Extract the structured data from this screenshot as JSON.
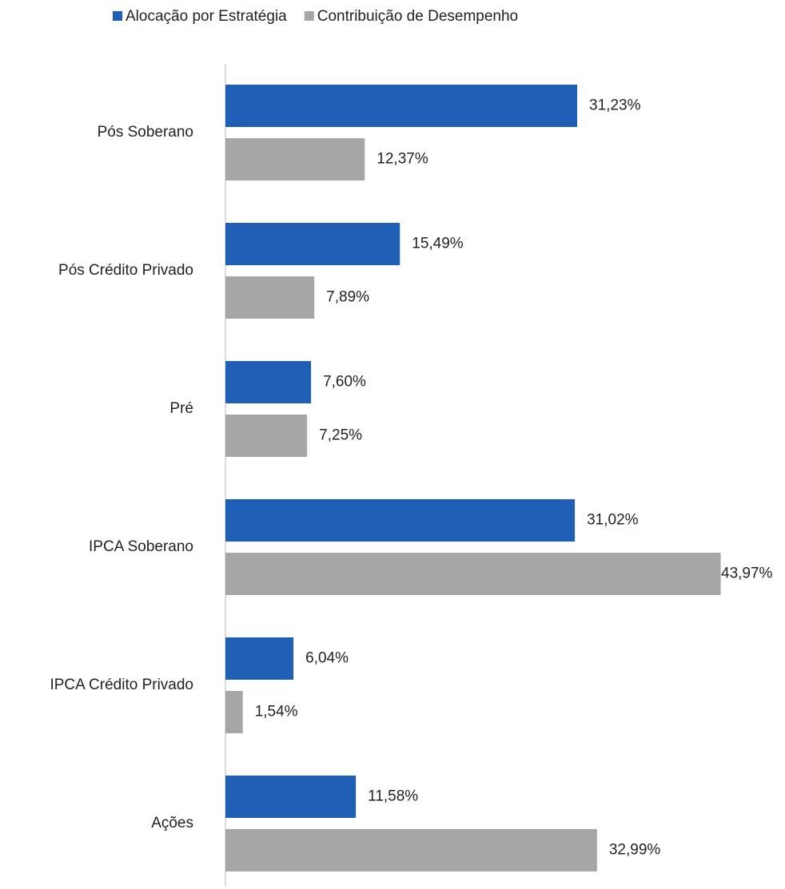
{
  "chart_data": {
    "type": "bar",
    "orientation": "horizontal",
    "categories": [
      "Pós Soberano",
      "Pós Crédito Privado",
      "Pré",
      "IPCA Soberano",
      "IPCA Crédito Privado",
      "Ações"
    ],
    "series": [
      {
        "name": "Alocação por Estratégia",
        "color": "#1f5fb5",
        "values": [
          31.23,
          15.49,
          7.6,
          31.02,
          6.04,
          11.58
        ],
        "value_labels": [
          "31,23%",
          "15,49%",
          "7,60%",
          "31,02%",
          "6,04%",
          "11,58%"
        ]
      },
      {
        "name": "Contribuição de Desempenho",
        "color": "#a6a6a6",
        "values": [
          12.37,
          7.89,
          7.25,
          43.97,
          1.54,
          32.99
        ],
        "value_labels": [
          "12,37%",
          "7,89%",
          "7,25%",
          "43,97%",
          "1,54%",
          "32,99%"
        ]
      }
    ],
    "xlim": [
      0,
      44
    ],
    "legend": "top"
  }
}
